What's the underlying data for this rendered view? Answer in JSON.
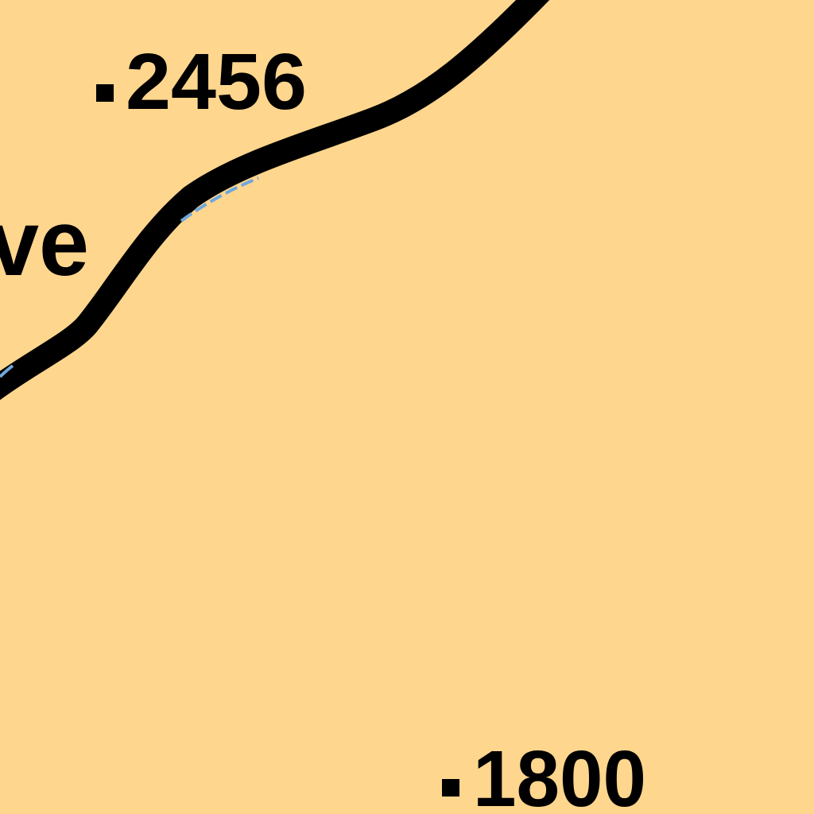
{
  "map": {
    "colors": {
      "land": "#FFD68E",
      "road_casing": "#000000",
      "road_center": "#6FA8DC",
      "label": "#000000"
    },
    "spot_heights": [
      {
        "value": "2456"
      },
      {
        "value": "1800"
      }
    ],
    "partial_label": {
      "text": "ve"
    }
  }
}
